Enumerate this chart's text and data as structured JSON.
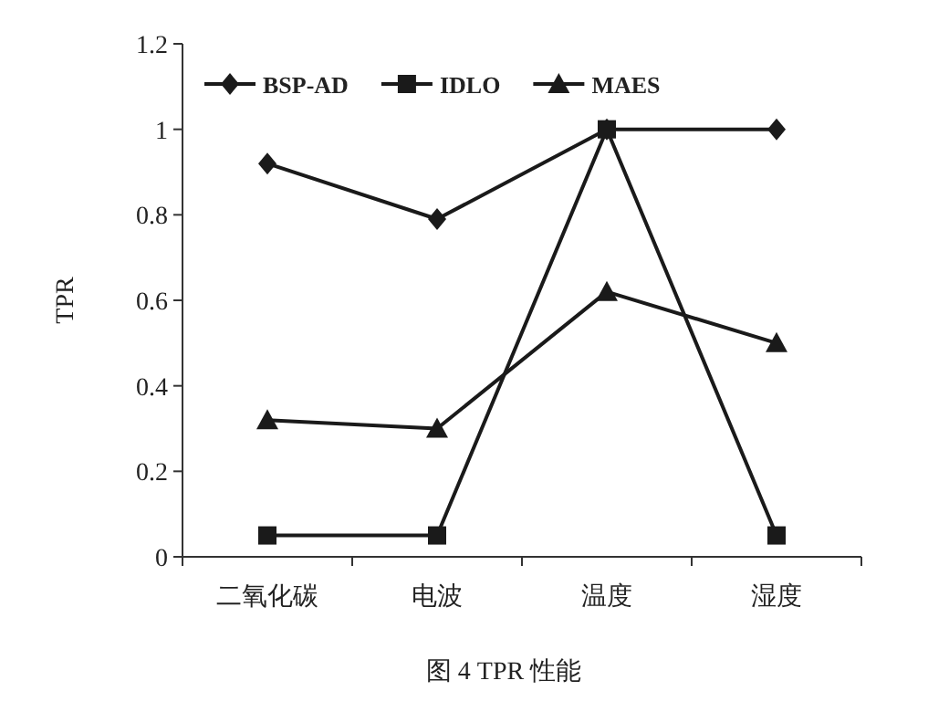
{
  "chart_data": {
    "type": "line",
    "title": "图 4 TPR 性能",
    "ylabel": "TPR",
    "categories": [
      "二氧化碳",
      "电波",
      "温度",
      "湿度"
    ],
    "series": [
      {
        "name": "BSP-AD",
        "color": "#1a1a1a",
        "marker": "diamond",
        "values": [
          0.92,
          0.79,
          1.0,
          1.0
        ]
      },
      {
        "name": "IDLO",
        "color": "#1a1a1a",
        "marker": "square",
        "values": [
          0.05,
          0.05,
          1.0,
          0.05
        ]
      },
      {
        "name": "MAES",
        "color": "#1a1a1a",
        "marker": "triangle",
        "values": [
          0.32,
          0.3,
          0.62,
          0.5
        ]
      }
    ],
    "ylim": [
      0,
      1.2
    ],
    "yticks": [
      0,
      0.2,
      0.4,
      0.6,
      0.8,
      1,
      1.2
    ],
    "grid": false,
    "legend": "top",
    "line_style": "solid"
  }
}
